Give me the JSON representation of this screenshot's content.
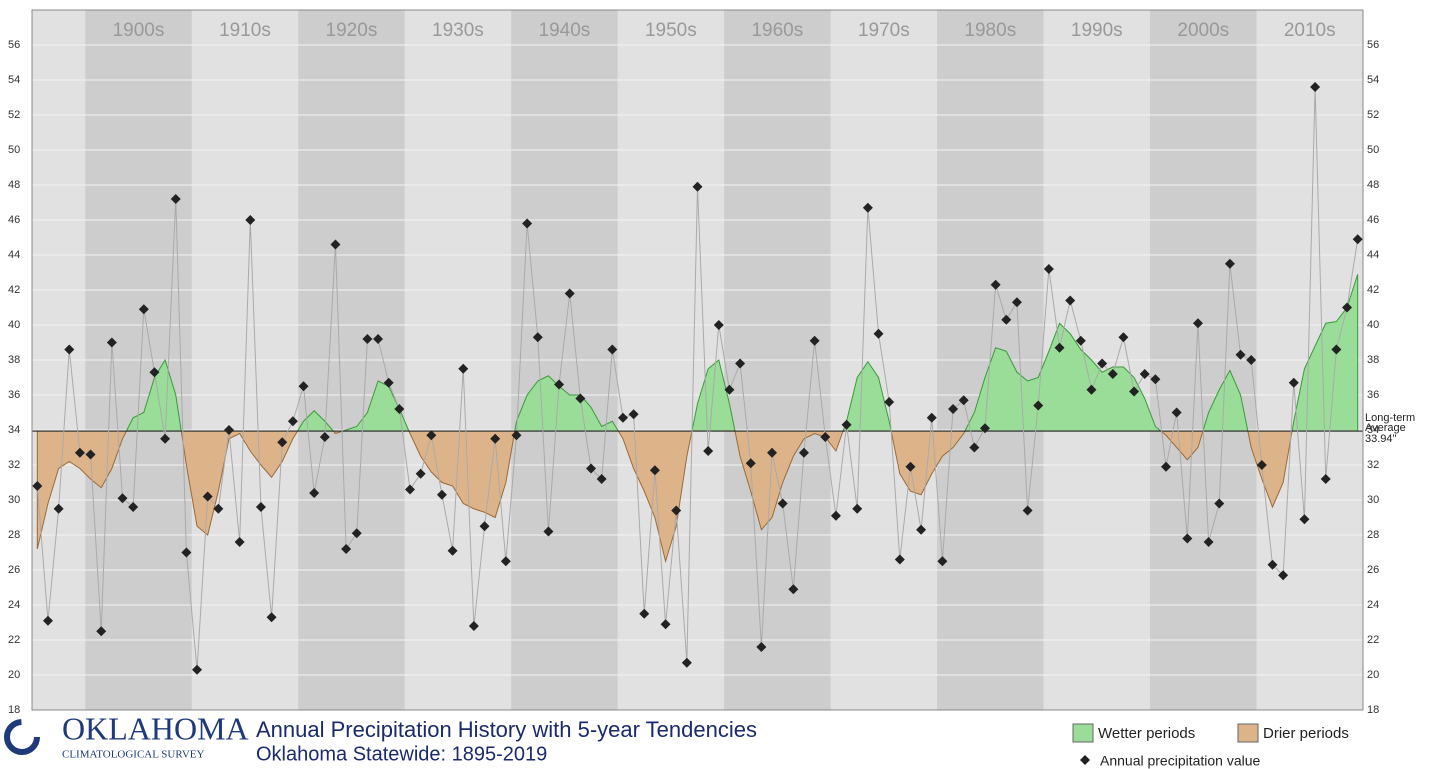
{
  "chart_data": {
    "type": "scatter",
    "title": "Annual Precipitation History with 5-year Tendencies",
    "subtitle": "Oklahoma Statewide: 1895-2019",
    "logo": {
      "name": "OKLAHOMA",
      "org": "CLIMATOLOGICAL SURVEY"
    },
    "x": [
      1895,
      1896,
      1897,
      1898,
      1899,
      1900,
      1901,
      1902,
      1903,
      1904,
      1905,
      1906,
      1907,
      1908,
      1909,
      1910,
      1911,
      1912,
      1913,
      1914,
      1915,
      1916,
      1917,
      1918,
      1919,
      1920,
      1921,
      1922,
      1923,
      1924,
      1925,
      1926,
      1927,
      1928,
      1929,
      1930,
      1931,
      1932,
      1933,
      1934,
      1935,
      1936,
      1937,
      1938,
      1939,
      1940,
      1941,
      1942,
      1943,
      1944,
      1945,
      1946,
      1947,
      1948,
      1949,
      1950,
      1951,
      1952,
      1953,
      1954,
      1955,
      1956,
      1957,
      1958,
      1959,
      1960,
      1961,
      1962,
      1963,
      1964,
      1965,
      1966,
      1967,
      1968,
      1969,
      1970,
      1971,
      1972,
      1973,
      1974,
      1975,
      1976,
      1977,
      1978,
      1979,
      1980,
      1981,
      1982,
      1983,
      1984,
      1985,
      1986,
      1987,
      1988,
      1989,
      1990,
      1991,
      1992,
      1993,
      1994,
      1995,
      1996,
      1997,
      1998,
      1999,
      2000,
      2001,
      2002,
      2003,
      2004,
      2005,
      2006,
      2007,
      2008,
      2009,
      2010,
      2011,
      2012,
      2013,
      2014,
      2015,
      2016,
      2017,
      2018,
      2019
    ],
    "series": [
      {
        "name": "Annual precipitation value",
        "color": "#222222",
        "values": [
          30.8,
          23.1,
          29.5,
          38.6,
          32.7,
          32.6,
          22.5,
          39.0,
          30.1,
          29.6,
          40.9,
          37.3,
          33.5,
          47.2,
          27.0,
          20.3,
          30.2,
          29.5,
          34.0,
          27.6,
          46.0,
          29.6,
          23.3,
          33.3,
          34.5,
          36.5,
          30.4,
          33.6,
          44.6,
          27.2,
          28.1,
          39.2,
          39.2,
          36.7,
          35.2,
          30.6,
          31.5,
          33.7,
          30.3,
          27.1,
          37.5,
          22.8,
          28.5,
          33.5,
          26.5,
          33.7,
          45.8,
          39.3,
          28.2,
          36.6,
          41.8,
          35.8,
          31.8,
          31.2,
          38.6,
          34.7,
          34.9,
          23.5,
          31.7,
          22.9,
          29.4,
          20.7,
          47.9,
          32.8,
          40.0,
          36.3,
          37.8,
          32.1,
          21.6,
          32.7,
          29.8,
          24.9,
          32.7,
          39.1,
          33.6,
          29.1,
          34.3,
          29.5,
          46.7,
          39.5,
          35.6,
          26.6,
          31.9,
          28.3,
          34.7,
          26.5,
          35.2,
          35.7,
          33.0,
          34.1,
          42.3,
          40.3,
          41.3,
          29.4,
          35.4,
          43.2,
          38.7,
          41.4,
          39.1,
          36.3,
          37.8,
          37.2,
          39.3,
          36.2,
          37.2,
          36.9,
          31.9,
          35.0,
          27.8,
          40.1,
          27.6,
          29.8,
          43.5,
          38.3,
          38.0,
          32.0,
          26.3,
          25.7,
          36.7,
          28.9,
          53.6,
          31.2,
          38.6,
          41.0,
          44.9
        ]
      }
    ],
    "tendency": [
      27.2,
      29.8,
      31.8,
      32.2,
      31.8,
      31.2,
      30.7,
      31.8,
      33.5,
      34.7,
      35.0,
      37.0,
      38.0,
      36.0,
      32.0,
      28.5,
      28.0,
      30.5,
      33.5,
      33.8,
      32.8,
      32.0,
      31.3,
      32.2,
      33.5,
      34.5,
      35.1,
      34.5,
      33.8,
      34.0,
      34.2,
      35.0,
      36.8,
      36.5,
      35.2,
      33.8,
      32.5,
      31.6,
      31.0,
      30.8,
      29.8,
      29.5,
      29.3,
      29.0,
      31.0,
      34.5,
      36.0,
      36.8,
      37.1,
      36.5,
      36.0,
      36.0,
      35.3,
      34.2,
      34.5,
      33.5,
      31.8,
      30.5,
      29.0,
      26.5,
      28.5,
      32.5,
      35.5,
      37.5,
      38.0,
      35.5,
      32.5,
      30.5,
      28.3,
      29.0,
      31.0,
      32.5,
      33.5,
      33.8,
      33.6,
      32.8,
      34.5,
      37.0,
      37.9,
      37.0,
      34.5,
      31.5,
      30.5,
      30.3,
      31.5,
      32.5,
      33.0,
      33.8,
      35.0,
      37.0,
      38.7,
      38.5,
      37.3,
      36.8,
      37.0,
      38.5,
      40.1,
      39.5,
      38.6,
      38.0,
      37.3,
      37.6,
      37.6,
      37.0,
      35.8,
      34.2,
      33.7,
      33.0,
      32.3,
      33.0,
      35.0,
      36.3,
      37.4,
      36.0,
      33.0,
      31.2,
      29.6,
      31.0,
      34.5,
      37.5,
      38.8,
      40.1,
      40.2,
      41.0,
      42.9
    ],
    "fills": [
      {
        "name": "Wetter periods",
        "color": "#99dd99"
      },
      {
        "name": "Drier periods",
        "color": "#ddb48a"
      }
    ],
    "average": {
      "value": 33.94,
      "label": "33.94\""
    },
    "average_title": [
      "Long-term",
      "Average"
    ],
    "xlim": [
      1894.5,
      2019.5
    ],
    "xticks": [
      {
        "value": 1900,
        "label": "1900s"
      },
      {
        "value": 1910,
        "label": "1910s"
      },
      {
        "value": 1920,
        "label": "1920s"
      },
      {
        "value": 1930,
        "label": "1930s"
      },
      {
        "value": 1940,
        "label": "1940s"
      },
      {
        "value": 1950,
        "label": "1950s"
      },
      {
        "value": 1960,
        "label": "1960s"
      },
      {
        "value": 1970,
        "label": "1970s"
      },
      {
        "value": 1980,
        "label": "1980s"
      },
      {
        "value": 1990,
        "label": "1990s"
      },
      {
        "value": 2000,
        "label": "2000s"
      },
      {
        "value": 2010,
        "label": "2010s"
      }
    ],
    "ylim": [
      18,
      58
    ],
    "yticks": [
      18,
      20,
      22,
      24,
      26,
      28,
      30,
      32,
      34,
      36,
      38,
      40,
      42,
      44,
      46,
      48,
      50,
      52,
      54,
      56
    ],
    "grid": true
  }
}
